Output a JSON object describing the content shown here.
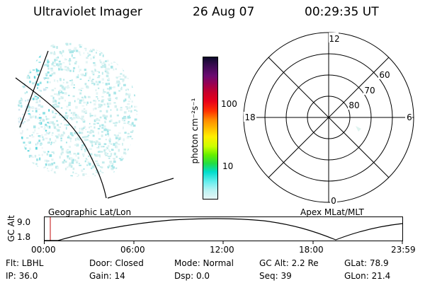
{
  "header": {
    "instrument": "Ultraviolet Imager",
    "date": "26 Aug 07",
    "time": "00:29:35 UT"
  },
  "colorbar": {
    "label": "photon cm⁻²s⁻¹",
    "ticks": [
      "100",
      "10"
    ],
    "colors": [
      "#0d0a2a",
      "#3b0a52",
      "#6a0a70",
      "#9a0050",
      "#c8002a",
      "#e8001a",
      "#ff3300",
      "#ff8800",
      "#ffbb00",
      "#ffee00",
      "#ccff00",
      "#66ee00",
      "#22dd44",
      "#00ddcc",
      "#66eeee",
      "#bbf3f3",
      "#e6f6f6"
    ]
  },
  "polar_plot": {
    "mlt_labels": {
      "top": "12",
      "left": "18",
      "right": "6",
      "bottom": "0"
    },
    "lat_labels": [
      "60",
      "70",
      "80"
    ]
  },
  "timeline": {
    "left_title": "Geographic Lat/Lon",
    "right_title": "Apex MLat/MLT",
    "y_label": "GC Alt",
    "y_ticks": [
      "9.0",
      "1.8"
    ],
    "x_ticks": [
      "00:00",
      "06:00",
      "12:00",
      "18:00",
      "23:59"
    ]
  },
  "info": {
    "flt": "Flt: LBHL",
    "ip": "IP: 36.0",
    "door": "Door: Closed",
    "gain": "Gain: 14",
    "mode": "Mode: Normal",
    "dsp": "Dsp:    0.0",
    "gc_alt": "GC Alt: 2.2 Re",
    "seq": "Seq: 39",
    "glat": "GLat:  78.9",
    "glon": "GLon:  21.4"
  }
}
